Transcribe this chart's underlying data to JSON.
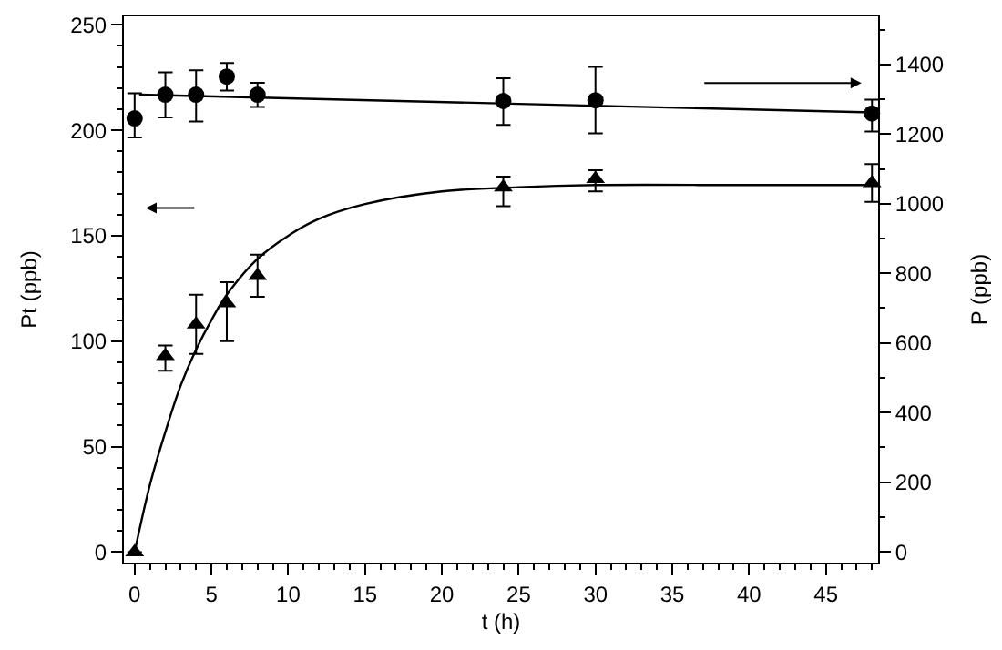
{
  "chart_data": {
    "type": "scatter",
    "xlabel": "t (h)",
    "ylabel": "Pt (ppb)",
    "y2label": "P (ppb)",
    "grid": false,
    "xlim": [
      -0.7,
      48.4
    ],
    "ylim": [
      -5,
      254
    ],
    "y2lim": [
      -31,
      1538
    ],
    "xticks": [
      0,
      5,
      10,
      15,
      20,
      25,
      30,
      35,
      40,
      45,
      {
        "value": 1,
        "label": null
      },
      {
        "value": 2,
        "label": null
      },
      {
        "value": 3,
        "label": null
      },
      {
        "value": 4,
        "label": null
      },
      {
        "value": 6,
        "label": null
      },
      {
        "value": 7,
        "label": null
      },
      {
        "value": 8,
        "label": null
      },
      {
        "value": 9,
        "label": null
      },
      {
        "value": 11,
        "label": null
      },
      {
        "value": 12,
        "label": null
      },
      {
        "value": 13,
        "label": null
      },
      {
        "value": 14,
        "label": null
      },
      {
        "value": 16,
        "label": null
      },
      {
        "value": 17,
        "label": null
      },
      {
        "value": 18,
        "label": null
      },
      {
        "value": 19,
        "label": null
      },
      {
        "value": 21,
        "label": null
      },
      {
        "value": 22,
        "label": null
      },
      {
        "value": 23,
        "label": null
      },
      {
        "value": 24,
        "label": null
      },
      {
        "value": 26,
        "label": null
      },
      {
        "value": 27,
        "label": null
      },
      {
        "value": 28,
        "label": null
      },
      {
        "value": 29,
        "label": null
      },
      {
        "value": 31,
        "label": null
      },
      {
        "value": 32,
        "label": null
      },
      {
        "value": 33,
        "label": null
      },
      {
        "value": 34,
        "label": null
      },
      {
        "value": 36,
        "label": null
      },
      {
        "value": 37,
        "label": null
      },
      {
        "value": 38,
        "label": null
      },
      {
        "value": 39,
        "label": null
      },
      {
        "value": 41,
        "label": null
      },
      {
        "value": 42,
        "label": null
      },
      {
        "value": 43,
        "label": null
      },
      {
        "value": 44,
        "label": null
      },
      {
        "value": 46,
        "label": null
      },
      {
        "value": 47,
        "label": null
      },
      {
        "value": 48,
        "label": null
      }
    ],
    "yticks": [
      0,
      50,
      100,
      150,
      200,
      250,
      {
        "value": 10,
        "label": null
      },
      {
        "value": 20,
        "label": null
      },
      {
        "value": 30,
        "label": null
      },
      {
        "value": 40,
        "label": null
      },
      {
        "value": 60,
        "label": null
      },
      {
        "value": 70,
        "label": null
      },
      {
        "value": 80,
        "label": null
      },
      {
        "value": 90,
        "label": null
      },
      {
        "value": 110,
        "label": null
      },
      {
        "value": 120,
        "label": null
      },
      {
        "value": 130,
        "label": null
      },
      {
        "value": 140,
        "label": null
      },
      {
        "value": 160,
        "label": null
      },
      {
        "value": 170,
        "label": null
      },
      {
        "value": 180,
        "label": null
      },
      {
        "value": 190,
        "label": null
      },
      {
        "value": 210,
        "label": null
      },
      {
        "value": 220,
        "label": null
      },
      {
        "value": 230,
        "label": null
      },
      {
        "value": 240,
        "label": null
      }
    ],
    "y2ticks": [
      0,
      200,
      400,
      600,
      800,
      1000,
      1200,
      1400,
      {
        "value": 100,
        "label": null
      },
      {
        "value": 300,
        "label": null
      },
      {
        "value": 500,
        "label": null
      },
      {
        "value": 700,
        "label": null
      },
      {
        "value": 900,
        "label": null
      },
      {
        "value": 1100,
        "label": null
      },
      {
        "value": 1300,
        "label": null
      },
      {
        "value": 1500,
        "label": null
      }
    ],
    "series": [
      {
        "marker": "triangle",
        "color": "#000000",
        "x": [
          0,
          2,
          4,
          6,
          8,
          24,
          30,
          48
        ],
        "values": [
          0,
          93,
          108,
          118,
          131,
          173,
          177,
          175
        ],
        "errors": [
          null,
          [
            86,
            98
          ],
          [
            94,
            122
          ],
          [
            100,
            128
          ],
          [
            121,
            141
          ],
          [
            164,
            178
          ],
          [
            171,
            181
          ],
          [
            166,
            184
          ]
        ]
      },
      {
        "type": "line",
        "marker": "none",
        "color": "#000000",
        "x": [
          0,
          1,
          2,
          3,
          4,
          5,
          6,
          8,
          10,
          12,
          15,
          20,
          25,
          30,
          40,
          48
        ],
        "values": [
          0,
          32,
          57,
          79,
          96,
          110,
          122,
          139,
          150,
          158,
          165,
          171,
          173,
          174,
          174,
          174
        ]
      },
      {
        "marker": "circle",
        "color": "#000000",
        "axis": "y2",
        "x": [
          0,
          2,
          4,
          6,
          8,
          24,
          30,
          48
        ],
        "values": [
          1245,
          1313,
          1313,
          1365,
          1313,
          1295,
          1297,
          1259
        ],
        "errors": [
          [
            1190,
            1317
          ],
          [
            1248,
            1377
          ],
          [
            1236,
            1383
          ],
          [
            1325,
            1404
          ],
          [
            1278,
            1347
          ],
          [
            1226,
            1360
          ],
          [
            1202,
            1393
          ],
          [
            1207,
            1299
          ]
        ]
      },
      {
        "type": "line",
        "marker": "none",
        "color": "#000000",
        "axis": "y2",
        "x": [
          0.3,
          48
        ],
        "values": [
          1313,
          1262
        ]
      }
    ]
  }
}
